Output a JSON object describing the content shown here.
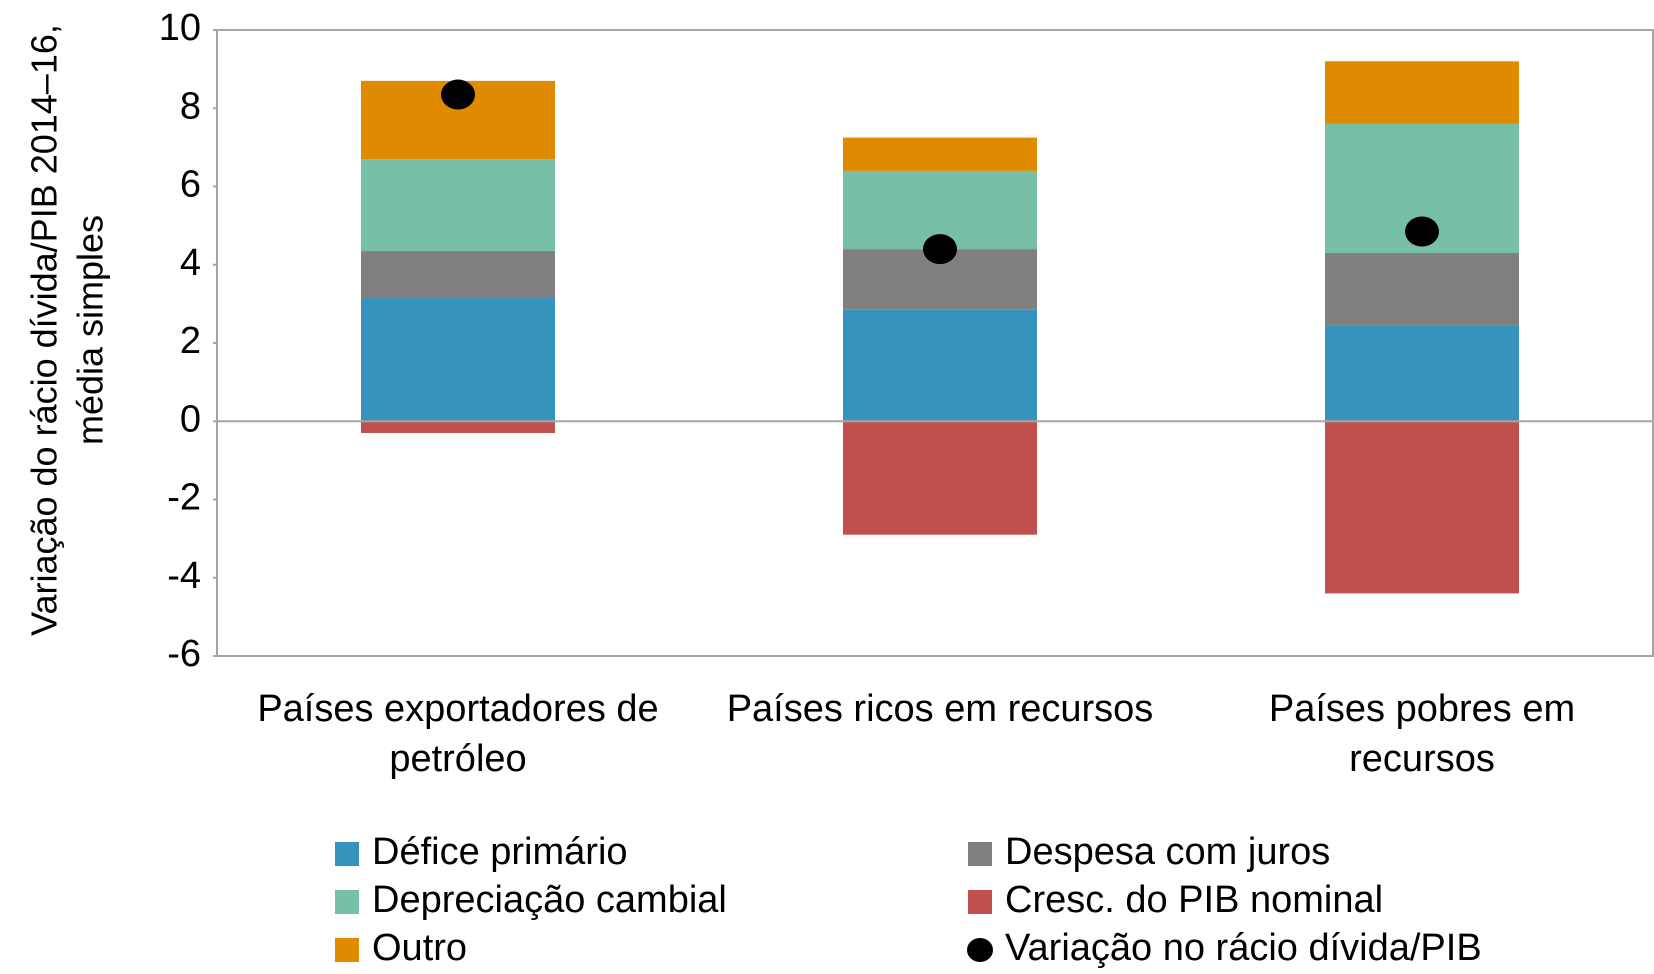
{
  "chart_data": {
    "type": "bar",
    "stacked": true,
    "ylabel": [
      "Variação do rácio dívida/PIB 2014–16,",
      "média simples"
    ],
    "categories": [
      "Países exportadores de petróleo",
      "Países ricos em recursos",
      "Países pobres em recursos"
    ],
    "series": [
      {
        "name": "Défice primário",
        "color": "#3593bd",
        "values": [
          3.15,
          2.85,
          2.45
        ]
      },
      {
        "name": "Despesa com juros",
        "color": "#808080",
        "values": [
          1.2,
          1.55,
          1.85
        ]
      },
      {
        "name": "Depreciação cambial",
        "color": "#77bfa6",
        "values": [
          2.35,
          2.0,
          3.3
        ]
      },
      {
        "name": "Cresc. do PIB nominal",
        "color": "#c0504d",
        "values": [
          -0.3,
          -2.9,
          -4.4
        ]
      },
      {
        "name": "Outro",
        "color": "#e08a00",
        "values": [
          2.0,
          0.85,
          1.6
        ]
      },
      {
        "name": "Variação no rácio dívida/PIB",
        "color": "#000000",
        "type": "scatter",
        "values": [
          8.35,
          4.4,
          4.85
        ]
      }
    ],
    "ylim": [
      -6,
      10
    ],
    "yticks": [
      -6,
      -4,
      -2,
      0,
      2,
      4,
      6,
      8,
      10
    ],
    "grid": false
  }
}
